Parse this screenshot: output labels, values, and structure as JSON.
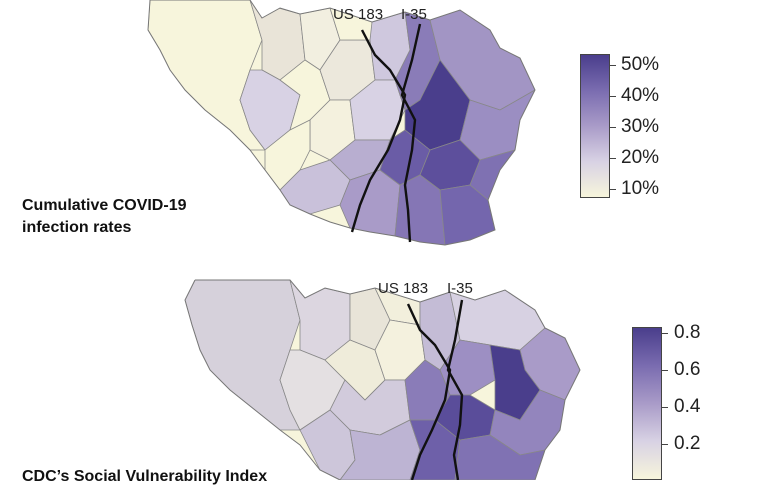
{
  "maps": [
    {
      "id": "covid",
      "roads": [
        "US 183",
        "I-35"
      ],
      "caption_lines": [
        "Cumulative  COVID-19",
        "infection rates"
      ],
      "legend": {
        "ticks": [
          "50%",
          "40%",
          "30%",
          "20%",
          "10%"
        ],
        "colors": [
          "#4a3e8c",
          "#7a6cb0",
          "#a99bc8",
          "#d8d2e4",
          "#f7f5dc"
        ]
      }
    },
    {
      "id": "svi",
      "roads": [
        "US 183",
        "I-35"
      ],
      "caption_lines": [
        "CDC’s Social Vulnerability Index"
      ],
      "legend": {
        "ticks": [
          "0.8",
          "0.6",
          "0.4",
          "0.2"
        ],
        "colors": [
          "#4a3e8c",
          "#7a6cb0",
          "#a99bc8",
          "#d8d2e4",
          "#f7f5dc"
        ]
      }
    }
  ]
}
